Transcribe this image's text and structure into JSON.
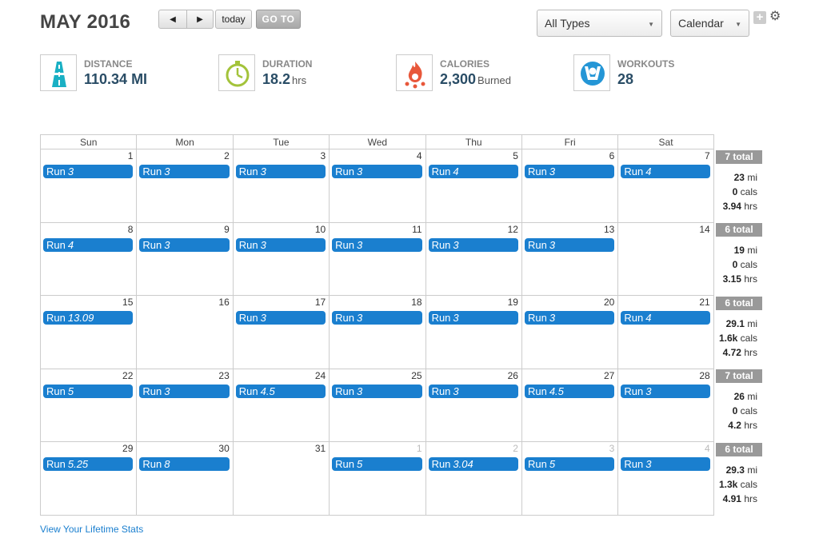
{
  "header": {
    "title": "MAY 2016",
    "today_label": "today",
    "goto_label": "GO TO",
    "types_select": "All Types",
    "view_select": "Calendar"
  },
  "stats": [
    {
      "label": "DISTANCE",
      "value": "110.34 MI",
      "unit": "",
      "icon": "road-icon"
    },
    {
      "label": "DURATION",
      "value": "18.2",
      "unit": "hrs",
      "icon": "stopwatch-icon"
    },
    {
      "label": "CALORIES",
      "value": "2,300",
      "unit": "Burned",
      "icon": "flame-icon"
    },
    {
      "label": "WORKOUTS",
      "value": "28",
      "unit": "",
      "icon": "workout-icon"
    }
  ],
  "colors": {
    "event": "#1a7fcf",
    "total": "#999999",
    "stat_value": "#2a4d66"
  },
  "days_of_week": [
    "Sun",
    "Mon",
    "Tue",
    "Wed",
    "Thu",
    "Fri",
    "Sat"
  ],
  "weeks": [
    {
      "days": [
        {
          "num": "1",
          "event": "Run",
          "dist": "3"
        },
        {
          "num": "2",
          "event": "Run",
          "dist": "3"
        },
        {
          "num": "3",
          "event": "Run",
          "dist": "3"
        },
        {
          "num": "4",
          "event": "Run",
          "dist": "3"
        },
        {
          "num": "5",
          "event": "Run",
          "dist": "4"
        },
        {
          "num": "6",
          "event": "Run",
          "dist": "3"
        },
        {
          "num": "7",
          "event": "Run",
          "dist": "4"
        }
      ],
      "total": {
        "label": "7 total",
        "mi": "23",
        "cals": "0",
        "hrs": "3.94"
      }
    },
    {
      "days": [
        {
          "num": "8",
          "event": "Run",
          "dist": "4"
        },
        {
          "num": "9",
          "event": "Run",
          "dist": "3"
        },
        {
          "num": "10",
          "event": "Run",
          "dist": "3"
        },
        {
          "num": "11",
          "event": "Run",
          "dist": "3"
        },
        {
          "num": "12",
          "event": "Run",
          "dist": "3"
        },
        {
          "num": "13",
          "event": "Run",
          "dist": "3"
        },
        {
          "num": "14",
          "event": "",
          "dist": ""
        }
      ],
      "total": {
        "label": "6 total",
        "mi": "19",
        "cals": "0",
        "hrs": "3.15"
      }
    },
    {
      "days": [
        {
          "num": "15",
          "event": "Run",
          "dist": "13.09"
        },
        {
          "num": "16",
          "event": "",
          "dist": ""
        },
        {
          "num": "17",
          "event": "Run",
          "dist": "3"
        },
        {
          "num": "18",
          "event": "Run",
          "dist": "3"
        },
        {
          "num": "19",
          "event": "Run",
          "dist": "3"
        },
        {
          "num": "20",
          "event": "Run",
          "dist": "3"
        },
        {
          "num": "21",
          "event": "Run",
          "dist": "4"
        }
      ],
      "total": {
        "label": "6 total",
        "mi": "29.1",
        "cals": "1.6k",
        "hrs": "4.72"
      }
    },
    {
      "days": [
        {
          "num": "22",
          "event": "Run",
          "dist": "5"
        },
        {
          "num": "23",
          "event": "Run",
          "dist": "3"
        },
        {
          "num": "24",
          "event": "Run",
          "dist": "4.5"
        },
        {
          "num": "25",
          "event": "Run",
          "dist": "3"
        },
        {
          "num": "26",
          "event": "Run",
          "dist": "3"
        },
        {
          "num": "27",
          "event": "Run",
          "dist": "4.5"
        },
        {
          "num": "28",
          "event": "Run",
          "dist": "3"
        }
      ],
      "total": {
        "label": "7 total",
        "mi": "26",
        "cals": "0",
        "hrs": "4.2"
      }
    },
    {
      "days": [
        {
          "num": "29",
          "event": "Run",
          "dist": "5.25"
        },
        {
          "num": "30",
          "event": "Run",
          "dist": "8"
        },
        {
          "num": "31",
          "event": "",
          "dist": ""
        },
        {
          "num": "1",
          "event": "Run",
          "dist": "5",
          "other": true
        },
        {
          "num": "2",
          "event": "Run",
          "dist": "3.04",
          "other": true
        },
        {
          "num": "3",
          "event": "Run",
          "dist": "5",
          "other": true
        },
        {
          "num": "4",
          "event": "Run",
          "dist": "3",
          "other": true
        }
      ],
      "total": {
        "label": "6 total",
        "mi": "29.3",
        "cals": "1.3k",
        "hrs": "4.91"
      }
    }
  ],
  "units": {
    "mi": "mi",
    "cals": "cals",
    "hrs": "hrs"
  },
  "footer": {
    "lifetime_link": "View Your Lifetime Stats"
  }
}
